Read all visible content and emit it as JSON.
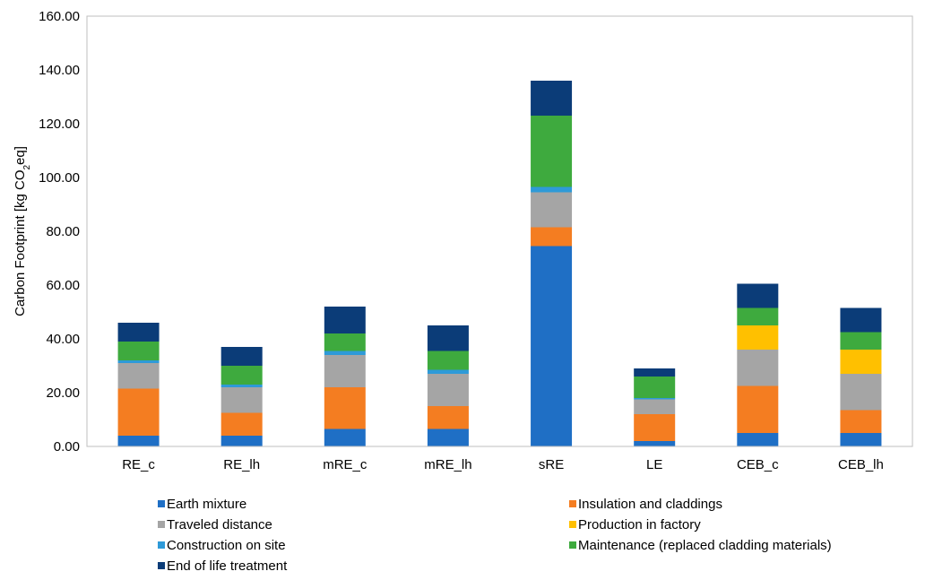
{
  "chart_data": {
    "type": "bar",
    "stacked": true,
    "title": "",
    "xlabel": "",
    "ylabel": "Carbon Footprint [kg CO",
    "ylabel_sub": "2",
    "ylabel_suffix": "eq]",
    "ylim": [
      0,
      160
    ],
    "ytick_step": 20,
    "ytick_labels": [
      "0.00",
      "20.00",
      "40.00",
      "60.00",
      "80.00",
      "100.00",
      "120.00",
      "140.00",
      "160.00"
    ],
    "grid": false,
    "legend_position": "bottom",
    "categories": [
      "RE_c",
      "RE_lh",
      "mRE_c",
      "mRE_lh",
      "sRE",
      "LE",
      "CEB_c",
      "CEB_lh"
    ],
    "series": [
      {
        "name": "Earth mixture",
        "color": "#1F6FC5",
        "values": [
          4.0,
          4.0,
          6.5,
          6.5,
          74.5,
          2.0,
          5.0,
          5.0
        ]
      },
      {
        "name": "Insulation and claddings",
        "color": "#F47D21",
        "values": [
          17.5,
          8.5,
          15.5,
          8.5,
          7.0,
          10.0,
          17.5,
          8.5
        ]
      },
      {
        "name": "Traveled distance",
        "color": "#A5A5A5",
        "values": [
          9.5,
          9.5,
          12.0,
          12.0,
          13.0,
          5.5,
          13.5,
          13.5
        ]
      },
      {
        "name": "Production in factory",
        "color": "#FFC000",
        "values": [
          0,
          0,
          0,
          0,
          0,
          0,
          9.0,
          9.0
        ]
      },
      {
        "name": "Construction on site",
        "color": "#2E9AD8",
        "values": [
          1.0,
          1.0,
          1.5,
          1.5,
          2.0,
          0.5,
          0,
          0
        ]
      },
      {
        "name": "Maintenance (replaced cladding materials)",
        "color": "#3EAA3E",
        "values": [
          7.0,
          7.0,
          6.5,
          7.0,
          26.5,
          8.0,
          6.5,
          6.5
        ]
      },
      {
        "name": "End of life treatment",
        "color": "#0B3C78",
        "values": [
          7.0,
          7.0,
          10.0,
          9.5,
          13.0,
          3.0,
          9.0,
          9.0
        ]
      }
    ]
  }
}
